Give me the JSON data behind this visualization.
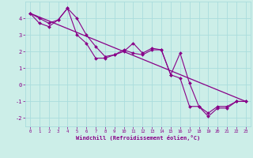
{
  "xlabel": "Windchill (Refroidissement éolien,°C)",
  "background_color": "#cceee8",
  "grid_color": "#aadddd",
  "line_color": "#880088",
  "xlim": [
    -0.5,
    23.5
  ],
  "ylim": [
    -2.5,
    5.0
  ],
  "yticks": [
    -2,
    -1,
    0,
    1,
    2,
    3,
    4
  ],
  "xticks": [
    0,
    1,
    2,
    3,
    4,
    5,
    6,
    7,
    8,
    9,
    10,
    11,
    12,
    13,
    14,
    15,
    16,
    17,
    18,
    19,
    20,
    21,
    22,
    23
  ],
  "line1_x": [
    0,
    1,
    2,
    3,
    4,
    5,
    6,
    7,
    8,
    9,
    10,
    11,
    12,
    13,
    14,
    15,
    16,
    17,
    18,
    19,
    20,
    21,
    22,
    23
  ],
  "line1_y": [
    4.3,
    4.0,
    3.7,
    3.9,
    4.6,
    4.0,
    3.0,
    2.3,
    1.7,
    1.8,
    2.1,
    1.9,
    1.8,
    2.1,
    2.1,
    0.6,
    1.9,
    0.1,
    -1.3,
    -1.7,
    -1.3,
    -1.3,
    -1.0,
    -1.0
  ],
  "line2_x": [
    0,
    1,
    2,
    3,
    4,
    5,
    6,
    7,
    8,
    9,
    10,
    11,
    12,
    13,
    14,
    15,
    16,
    17,
    18,
    19,
    20,
    21,
    22,
    23
  ],
  "line2_y": [
    4.3,
    3.7,
    3.5,
    3.9,
    4.6,
    3.0,
    2.5,
    1.6,
    1.6,
    1.8,
    2.0,
    2.5,
    1.9,
    2.2,
    2.1,
    0.6,
    0.4,
    -1.3,
    -1.3,
    -1.9,
    -1.4,
    -1.4,
    -1.0,
    -1.0
  ],
  "line3_x": [
    0,
    23
  ],
  "line3_y": [
    4.3,
    -1.0
  ]
}
